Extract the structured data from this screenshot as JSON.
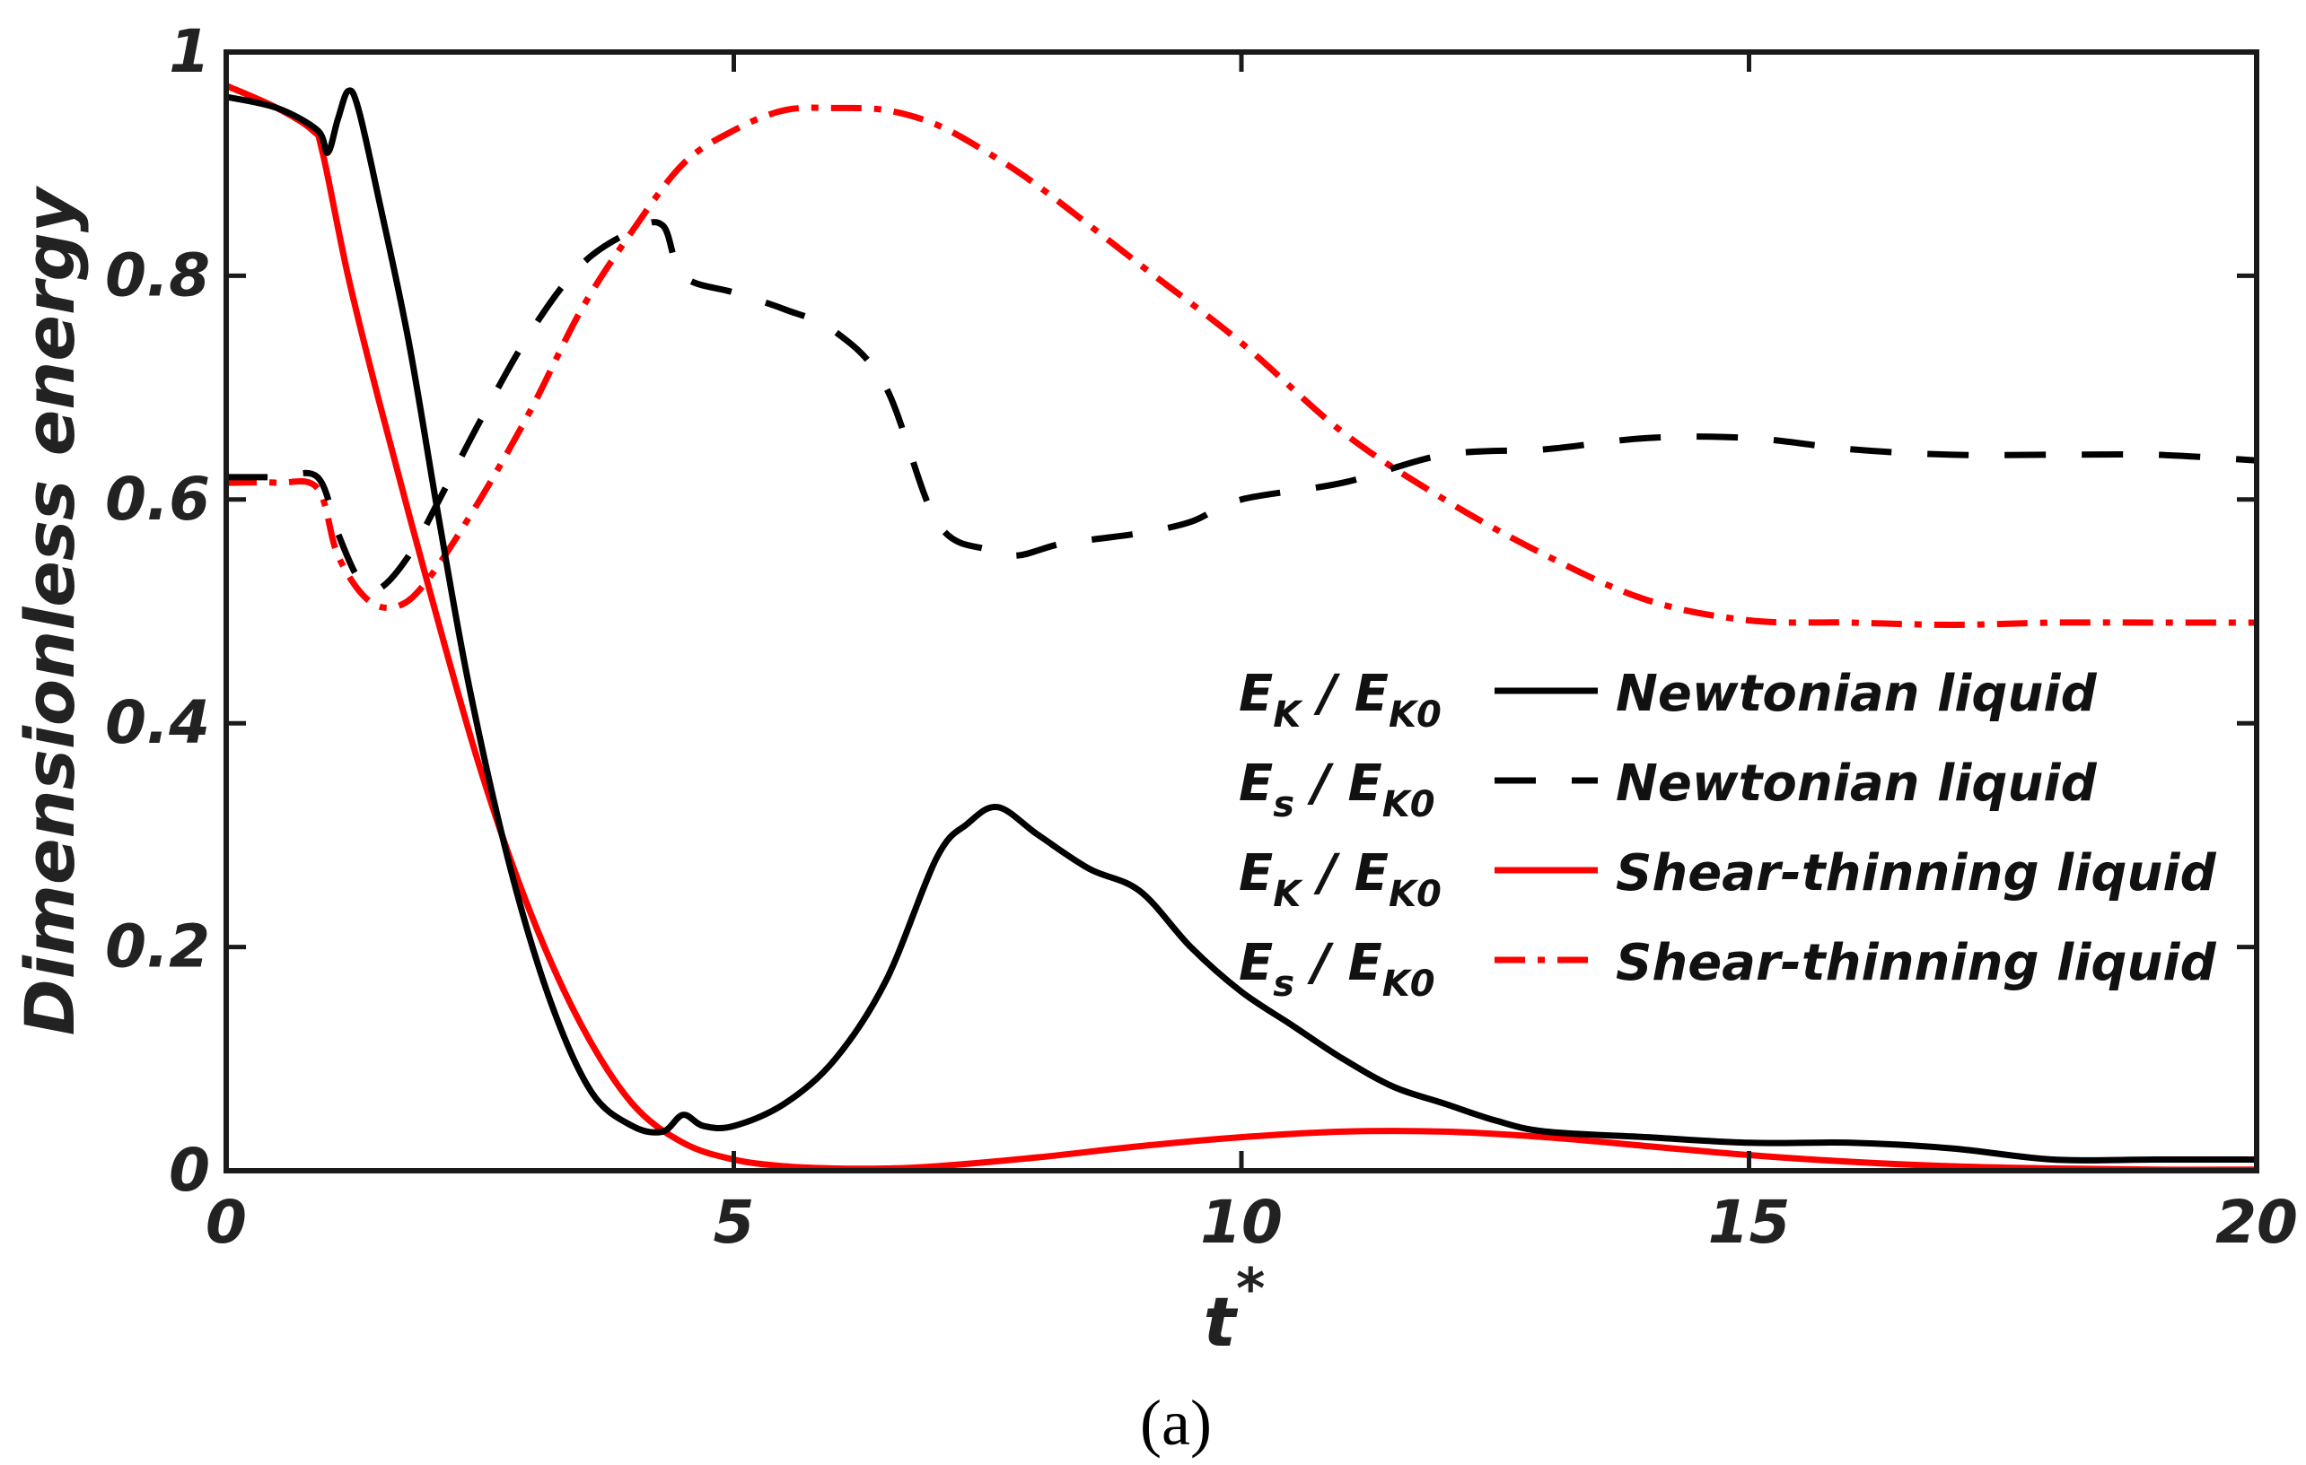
{
  "chart_data": {
    "type": "line",
    "caption": "(a)",
    "xlabel": "t",
    "xlabel_superscript": "*",
    "ylabel": "Dimensionless energy",
    "xlim": [
      0,
      20
    ],
    "ylim": [
      0,
      1
    ],
    "xticks": [
      "0",
      "5",
      "10",
      "15",
      "20"
    ],
    "yticks": [
      "0",
      "0.2",
      "0.4",
      "0.6",
      "0.8",
      "1"
    ],
    "legend_position": "right",
    "series": [
      {
        "name": "Newtonian liquid",
        "energy": "E_K / E_K0",
        "symbol": "E",
        "sub": "K",
        "ref": "E",
        "ref_sub": "K0",
        "color": "#000000",
        "style": "solid",
        "x": [
          0,
          0.5,
          0.9,
          1.0,
          1.1,
          1.2,
          1.3,
          1.5,
          1.8,
          2.1,
          2.4,
          2.8,
          3.2,
          3.6,
          4.0,
          4.3,
          4.5,
          4.7,
          5.0,
          5.5,
          6.0,
          6.5,
          7.0,
          7.3,
          7.6,
          8.0,
          8.5,
          9.0,
          9.5,
          10.0,
          10.5,
          11.0,
          11.5,
          12.0,
          12.5,
          13.0,
          14.0,
          15.0,
          16.0,
          17.0,
          18.0,
          19.0,
          20.0
        ],
        "y": [
          0.96,
          0.95,
          0.93,
          0.91,
          0.94,
          0.965,
          0.95,
          0.87,
          0.74,
          0.58,
          0.43,
          0.27,
          0.15,
          0.07,
          0.04,
          0.035,
          0.05,
          0.04,
          0.04,
          0.06,
          0.1,
          0.17,
          0.28,
          0.31,
          0.325,
          0.3,
          0.27,
          0.25,
          0.2,
          0.16,
          0.13,
          0.1,
          0.075,
          0.06,
          0.045,
          0.035,
          0.03,
          0.025,
          0.025,
          0.02,
          0.01,
          0.01,
          0.01
        ]
      },
      {
        "name": "Newtonian liquid",
        "energy": "E_s / E_K0",
        "symbol": "E",
        "sub": "s",
        "ref": "E",
        "ref_sub": "K0",
        "color": "#000000",
        "style": "dashed",
        "x": [
          0,
          0.5,
          0.9,
          1.1,
          1.3,
          1.5,
          1.8,
          2.1,
          2.5,
          3.0,
          3.5,
          4.0,
          4.3,
          4.5,
          5.0,
          5.5,
          6.0,
          6.5,
          7.0,
          7.5,
          7.8,
          8.2,
          8.6,
          9.0,
          9.5,
          10.0,
          11.0,
          12.0,
          13.0,
          14.0,
          15.0,
          16.0,
          17.0,
          18.0,
          19.0,
          20.0
        ],
        "y": [
          0.62,
          0.62,
          0.62,
          0.57,
          0.53,
          0.52,
          0.55,
          0.6,
          0.67,
          0.75,
          0.81,
          0.84,
          0.845,
          0.8,
          0.785,
          0.77,
          0.75,
          0.7,
          0.58,
          0.555,
          0.55,
          0.56,
          0.565,
          0.57,
          0.58,
          0.6,
          0.615,
          0.64,
          0.645,
          0.655,
          0.655,
          0.645,
          0.64,
          0.64,
          0.64,
          0.635
        ]
      },
      {
        "name": "Shear-thinning liquid",
        "energy": "E_K / E_K0",
        "symbol": "E",
        "sub": "K",
        "ref": "E",
        "ref_sub": "K0",
        "color": "#ff0000",
        "style": "solid",
        "x": [
          0,
          0.5,
          0.85,
          0.95,
          1.2,
          1.5,
          2.0,
          2.5,
          3.0,
          3.5,
          4.0,
          4.5,
          5.0,
          5.5,
          6.0,
          6.5,
          7.0,
          8.0,
          9.0,
          10.0,
          11.0,
          12.0,
          13.0,
          14.0,
          15.0,
          16.0,
          17.0,
          18.0,
          19.0,
          20.0
        ],
        "y": [
          0.97,
          0.95,
          0.93,
          0.91,
          0.8,
          0.69,
          0.52,
          0.36,
          0.23,
          0.13,
          0.06,
          0.025,
          0.01,
          0.004,
          0.002,
          0.002,
          0.004,
          0.012,
          0.022,
          0.03,
          0.035,
          0.035,
          0.03,
          0.022,
          0.014,
          0.008,
          0.004,
          0.002,
          0.001,
          0.001
        ]
      },
      {
        "name": "Shear-thinning liquid",
        "energy": "E_s / E_K0",
        "symbol": "E",
        "sub": "s",
        "ref": "E",
        "ref_sub": "K0",
        "color": "#ff0000",
        "style": "dashdot",
        "x": [
          0,
          0.5,
          0.9,
          1.1,
          1.4,
          1.7,
          2.0,
          2.5,
          3.0,
          3.5,
          4.0,
          4.5,
          5.0,
          5.5,
          6.0,
          6.5,
          7.0,
          7.5,
          8.0,
          9.0,
          10.0,
          11.0,
          12.0,
          13.0,
          14.0,
          15.0,
          16.0,
          17.0,
          18.0,
          19.0,
          20.0
        ],
        "y": [
          0.615,
          0.615,
          0.61,
          0.55,
          0.51,
          0.505,
          0.53,
          0.6,
          0.68,
          0.77,
          0.84,
          0.9,
          0.93,
          0.948,
          0.95,
          0.948,
          0.935,
          0.91,
          0.88,
          0.81,
          0.74,
          0.66,
          0.6,
          0.55,
          0.51,
          0.492,
          0.49,
          0.488,
          0.49,
          0.49,
          0.49
        ]
      }
    ]
  }
}
